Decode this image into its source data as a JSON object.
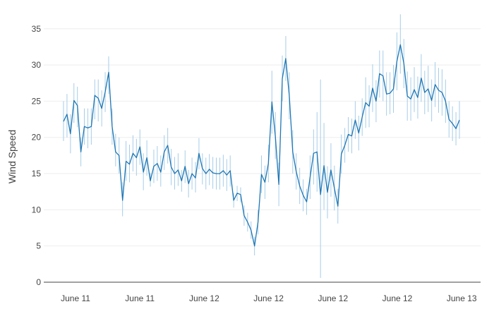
{
  "chart_data": {
    "type": "line",
    "title": "",
    "xlabel": "",
    "ylabel": "Wind Speed",
    "ylim": [
      0,
      38
    ],
    "yticks": [
      0,
      5,
      10,
      15,
      20,
      25,
      30,
      35
    ],
    "xticks": [
      "June 11",
      "June 11",
      "June 12",
      "June 12",
      "June 12",
      "June 12",
      "June 13"
    ],
    "grid": true,
    "legend": "none",
    "colors": {
      "line": "#1f77b4",
      "error_bar": "#a6cde8",
      "grid": "#eeeeee",
      "axis": "#444444"
    },
    "series": [
      {
        "values": [
          22.2,
          23.2,
          20.5,
          25.1,
          24.4,
          18,
          21.5,
          21.3,
          21.5,
          25.8,
          25.4,
          24,
          26.3,
          29,
          21.5,
          18,
          17.5,
          11.3,
          16.7,
          16.3,
          17.8,
          17.2,
          18.7,
          15.2,
          17.2,
          14,
          16,
          16.4,
          15.2,
          18,
          18.9,
          15.9,
          15,
          15.5,
          14,
          16,
          13.6,
          15,
          14.4,
          17.8,
          15.7,
          15,
          15.6,
          15.1,
          15,
          15,
          15.4,
          14.8,
          15.4,
          11.3,
          12.3,
          12.1,
          9.2,
          8.3,
          7.2,
          5,
          8.3,
          14.9,
          13.8,
          16.4,
          24.9,
          20.1,
          13.5,
          28.1,
          30.9,
          25.8,
          18,
          15.3,
          13.3,
          12,
          11.1,
          14.5,
          17.8,
          18,
          12.1,
          16.1,
          12.4,
          15.5,
          13,
          10.5,
          17.7,
          18.9,
          20.4,
          20.2,
          22.4,
          20.6,
          22.8,
          24.8,
          24.3,
          26.8,
          25,
          28.8,
          28.5,
          26,
          26.1,
          26.7,
          30.5,
          32.8,
          30.2,
          25.7,
          25.3,
          26.6,
          25.5,
          28.2,
          26.2,
          26.7,
          25.1,
          27.3,
          26.5,
          26.2,
          25,
          22.5,
          21.9,
          21.2,
          22.4
        ],
        "err_low": [
          19.5,
          20,
          17.8,
          22,
          21.4,
          16,
          19,
          18.5,
          19,
          22.5,
          22.2,
          21.5,
          23.5,
          26,
          19,
          16,
          15,
          9.1,
          14,
          13.8,
          15.3,
          14.7,
          16.2,
          12.7,
          14.7,
          13.2,
          13.7,
          14,
          13.2,
          15.5,
          16.4,
          13.4,
          12.8,
          13.3,
          12.5,
          13.7,
          11.7,
          12.8,
          12.4,
          15.6,
          13.5,
          12.8,
          13.4,
          12.9,
          12.8,
          12.8,
          13.2,
          12.6,
          13.2,
          10.3,
          11.2,
          11,
          7.8,
          7,
          6,
          3.7,
          6.6,
          12.3,
          11.5,
          13.8,
          20.5,
          17,
          10.5,
          25,
          27.8,
          22.5,
          15,
          12.8,
          10.8,
          9.8,
          9.3,
          11.5,
          13.5,
          12.5,
          0.6,
          10,
          8.8,
          11.8,
          9.9,
          8.1,
          15,
          16.5,
          18,
          17.8,
          19.8,
          18.2,
          20.2,
          21.3,
          21.4,
          23.5,
          22.1,
          25.5,
          25,
          23,
          23.2,
          23.4,
          26.5,
          28.8,
          26.8,
          22.3,
          22.3,
          23.5,
          22.6,
          24.9,
          23.2,
          23.5,
          22.2,
          24.2,
          23.4,
          23,
          22,
          20,
          19.5,
          18.9,
          19.8
        ],
        "err_high": [
          25,
          26,
          23.2,
          27.5,
          27,
          20,
          24,
          24,
          24,
          28,
          28,
          26.5,
          29,
          31.2,
          24,
          20.5,
          20,
          13.8,
          19.5,
          19,
          20.3,
          19.8,
          21.1,
          17.8,
          19.6,
          15.1,
          18.3,
          18.8,
          17.5,
          20.3,
          21.3,
          18.4,
          17.3,
          17.8,
          15.5,
          18.2,
          15.5,
          17.2,
          16.6,
          19.9,
          17.8,
          17.2,
          17.7,
          17.3,
          17.2,
          17.2,
          17.6,
          17,
          17.5,
          12.3,
          13.3,
          13.1,
          10.6,
          9.6,
          8.4,
          6.3,
          10,
          17.5,
          16.1,
          19,
          29.2,
          23.5,
          16.5,
          31.3,
          34,
          29,
          21,
          17.8,
          15.8,
          14.2,
          12.9,
          17.5,
          21.1,
          23.5,
          28,
          22,
          16,
          19.2,
          16.1,
          12.9,
          20.4,
          21.3,
          22.8,
          22.6,
          25,
          23,
          25.4,
          28.3,
          27.2,
          30.1,
          27.9,
          32,
          32,
          29,
          29,
          30,
          34.5,
          37,
          33.6,
          29.1,
          28.3,
          29.7,
          28.4,
          31.5,
          29.2,
          29.9,
          28,
          30.4,
          29.6,
          29.4,
          28,
          25,
          24.3,
          23.5,
          25
        ]
      }
    ]
  }
}
